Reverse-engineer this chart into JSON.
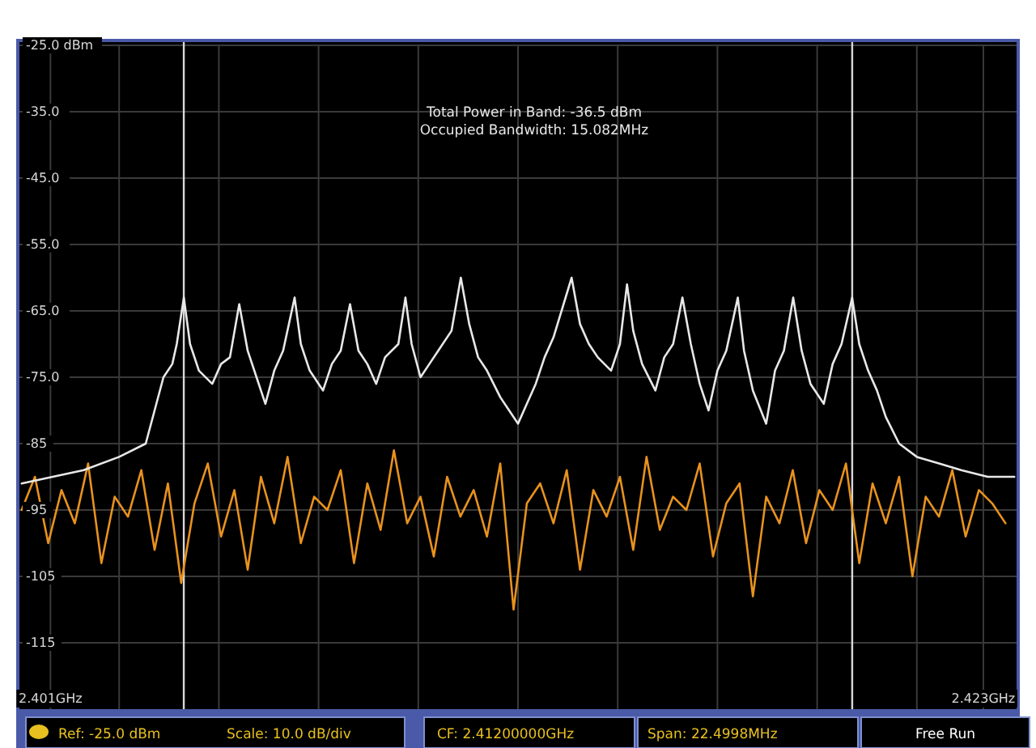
{
  "chart_data": {
    "type": "line",
    "annotations": [
      "Total Power in Band: -36.5 dBm",
      "Occupied Bandwidth: 15.082MHz",
      "Ref: -25.0 dBm",
      "Scale: 10.0 dB/div",
      "CF: 2.41200000GHz",
      "Span: 22.4998MHz",
      "Free Run"
    ],
    "xlim": [
      2.40075,
      2.42325
    ],
    "xticks": [
      {
        "value": 2.40145,
        "label": "2.401GHz"
      },
      {
        "value": 2.403,
        "label": null
      },
      {
        "value": 2.40525,
        "label": null
      },
      {
        "value": 2.4075,
        "label": null
      },
      {
        "value": 2.40975,
        "label": null
      },
      {
        "value": 2.412,
        "label": null
      },
      {
        "value": 2.41425,
        "label": null
      },
      {
        "value": 2.4165,
        "label": null
      },
      {
        "value": 2.41875,
        "label": null
      },
      {
        "value": 2.421,
        "label": null
      },
      {
        "value": 2.4225,
        "label": "2.423GHz"
      }
    ],
    "ylim": [
      -125,
      -25
    ],
    "yticks": [
      {
        "value": -25,
        "label": "-25.0 dBm"
      },
      {
        "value": -35,
        "label": "-35.0"
      },
      {
        "value": -45,
        "label": "-45.0"
      },
      {
        "value": -55,
        "label": "-55.0"
      },
      {
        "value": -65,
        "label": "-65.0"
      },
      {
        "value": -75,
        "label": "-75.0"
      },
      {
        "value": -85,
        "label": "-85"
      },
      {
        "value": -95,
        "label": "-95"
      },
      {
        "value": -105,
        "label": "-105"
      },
      {
        "value": -115,
        "label": "-115"
      }
    ],
    "grid": true,
    "ref_lines": [
      {
        "axis": "x",
        "value": 2.404459,
        "color": "#d8d8d8"
      },
      {
        "axis": "x",
        "value": 2.419541,
        "color": "#d8d8d8"
      }
    ],
    "series": [
      {
        "color": "#e8921e",
        "x": [
          2.4008,
          2.4011,
          2.4014,
          2.4017,
          2.402,
          2.4023,
          2.4026,
          2.4029,
          2.4032,
          2.4035,
          2.4038,
          2.4041,
          2.4044,
          2.4047,
          2.405,
          2.4053,
          2.4056,
          2.4059,
          2.4062,
          2.4065,
          2.4068,
          2.4071,
          2.4074,
          2.4077,
          2.408,
          2.4083,
          2.4086,
          2.4089,
          2.4092,
          2.4095,
          2.4098,
          2.4101,
          2.4104,
          2.4107,
          2.411,
          2.4113,
          2.4116,
          2.4119,
          2.4122,
          2.4125,
          2.4128,
          2.4131,
          2.4134,
          2.4137,
          2.414,
          2.4143,
          2.4146,
          2.4149,
          2.4152,
          2.4155,
          2.4158,
          2.4161,
          2.4164,
          2.4167,
          2.417,
          2.4173,
          2.4176,
          2.4179,
          2.4182,
          2.4185,
          2.4188,
          2.4191,
          2.4194,
          2.4197,
          2.42,
          2.4203,
          2.4206,
          2.4209,
          2.4212,
          2.4215,
          2.4218,
          2.4221,
          2.4224,
          2.4227,
          2.423
        ],
        "values": [
          -95,
          -90,
          -100,
          -92,
          -97,
          -88,
          -103,
          -93,
          -96,
          -89,
          -101,
          -91,
          -106,
          -94,
          -88,
          -99,
          -92,
          -104,
          -90,
          -97,
          -87,
          -100,
          -93,
          -95,
          -89,
          -103,
          -91,
          -98,
          -86,
          -97,
          -93,
          -102,
          -90,
          -96,
          -92,
          -99,
          -88,
          -110,
          -94,
          -91,
          -97,
          -89,
          -104,
          -92,
          -96,
          -90,
          -101,
          -87,
          -98,
          -93,
          -95,
          -88,
          -102,
          -94,
          -91,
          -108,
          -93,
          -97,
          -89,
          -100,
          -92,
          -95,
          -88,
          -103,
          -91,
          -97,
          -90,
          -105,
          -93,
          -96,
          -89,
          -99,
          -92,
          -94,
          -97
        ]
      },
      {
        "color": "#e8e8e8",
        "x": [
          2.4008,
          2.4015,
          2.4022,
          2.403,
          2.4036,
          2.4038,
          2.404,
          2.4042,
          2.4043,
          2.40446,
          2.4046,
          2.4048,
          2.4051,
          2.4053,
          2.4055,
          2.40571,
          2.4059,
          2.4061,
          2.4063,
          2.4065,
          2.4067,
          2.40696,
          2.4071,
          2.4073,
          2.4076,
          2.4078,
          2.408,
          2.40821,
          2.4084,
          2.4086,
          2.4088,
          2.409,
          2.4093,
          2.40946,
          2.4096,
          2.4098,
          2.41,
          2.4102,
          2.4105,
          2.41071,
          2.4109,
          2.4111,
          2.4113,
          2.4116,
          2.4118,
          2.412,
          2.4122,
          2.4124,
          2.4126,
          2.4128,
          2.41321,
          2.4134,
          2.4136,
          2.4138,
          2.4141,
          2.4143,
          2.41446,
          2.4146,
          2.4148,
          2.4151,
          2.4153,
          2.4155,
          2.41571,
          2.4159,
          2.4161,
          2.4163,
          2.4165,
          2.4167,
          2.41696,
          2.4171,
          2.4173,
          2.4176,
          2.4178,
          2.418,
          2.41821,
          2.4184,
          2.4186,
          2.4189,
          2.4191,
          2.4193,
          2.41954,
          2.4197,
          2.4199,
          2.4201,
          2.4203,
          2.4206,
          2.421,
          2.4215,
          2.422,
          2.4226,
          2.4232
        ],
        "values": [
          -91,
          -90,
          -89,
          -87,
          -85,
          -80,
          -75,
          -73,
          -70,
          -63,
          -70,
          -74,
          -76,
          -73,
          -72,
          -64,
          -71,
          -75,
          -79,
          -74,
          -71,
          -63,
          -70,
          -74,
          -77,
          -73,
          -71,
          -64,
          -71,
          -73,
          -76,
          -72,
          -70,
          -63,
          -70,
          -75,
          -73,
          -71,
          -68,
          -60,
          -67,
          -72,
          -74,
          -78,
          -80,
          -82,
          -79,
          -76,
          -72,
          -69,
          -60,
          -67,
          -70,
          -72,
          -74,
          -70,
          -61,
          -68,
          -73,
          -77,
          -72,
          -70,
          -63,
          -70,
          -76,
          -80,
          -74,
          -71,
          -63,
          -71,
          -77,
          -82,
          -74,
          -71,
          -63,
          -71,
          -76,
          -79,
          -73,
          -70,
          -63,
          -70,
          -74,
          -77,
          -81,
          -85,
          -87,
          -88,
          -89,
          -90,
          -90
        ]
      }
    ]
  }
}
